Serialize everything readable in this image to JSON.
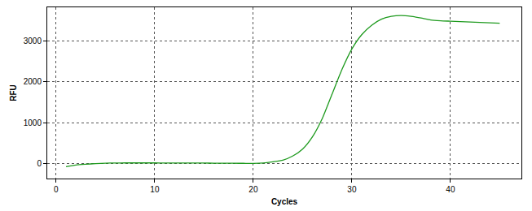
{
  "chart_data": {
    "type": "line",
    "x_label": "Cycles",
    "y_label": "RFU",
    "x": [
      1,
      2,
      3,
      4,
      5,
      6,
      7,
      8,
      9,
      10,
      11,
      12,
      13,
      14,
      15,
      16,
      17,
      18,
      19,
      20,
      21,
      22,
      23,
      24,
      25,
      26,
      27,
      28,
      29,
      30,
      31,
      32,
      33,
      34,
      35,
      36,
      37,
      38,
      39,
      40,
      41,
      42,
      43,
      44,
      45
    ],
    "series": [
      {
        "color": "#1e9a1e",
        "line_style": "solid",
        "values": [
          -80,
          -40,
          -20,
          -5,
          5,
          10,
          12,
          12,
          12,
          12,
          11,
          10,
          10,
          9,
          8,
          6,
          5,
          3,
          2,
          0,
          10,
          40,
          80,
          180,
          350,
          650,
          1100,
          1700,
          2300,
          2800,
          3150,
          3380,
          3530,
          3600,
          3620,
          3600,
          3560,
          3510,
          3490,
          3480,
          3470,
          3460,
          3450,
          3440,
          3430
        ]
      }
    ],
    "xlim": [
      -0.9,
      47.2
    ],
    "xticks": [
      0,
      10,
      20,
      30,
      40
    ],
    "ylim": [
      -370,
      3820
    ],
    "yticks": [
      0,
      1000,
      2000,
      3000
    ],
    "grid": true
  }
}
